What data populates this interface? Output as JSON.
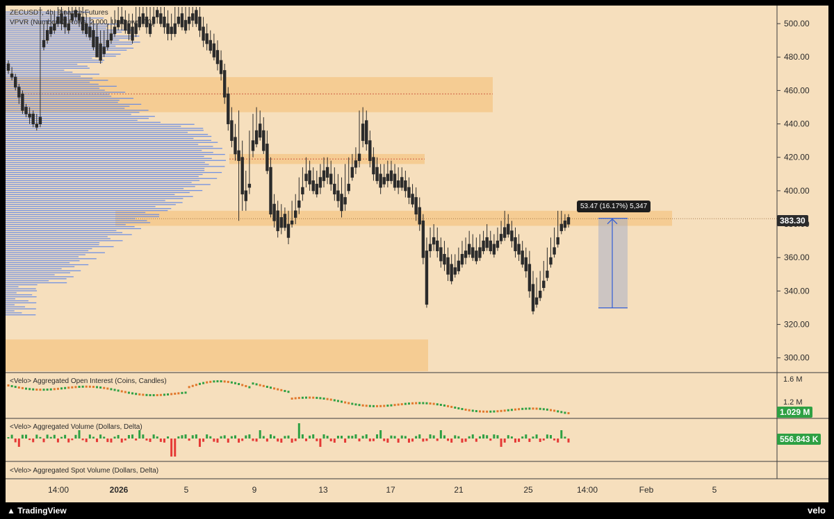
{
  "header": {
    "symbol_line": "ZECUSDT, 4h, Binance-Futures",
    "vpvr_line": "VPVR (Number Of Rows, 2,000, Up/Down, 70)"
  },
  "price_axis": {
    "ticks": [
      "500.00",
      "480.00",
      "460.00",
      "440.00",
      "420.00",
      "400.00",
      "380.00",
      "360.00",
      "340.00",
      "320.00",
      "300.00"
    ],
    "current_price": "383.30"
  },
  "time_axis": {
    "labels": [
      "14:00",
      "2026",
      "5",
      "9",
      "13",
      "17",
      "21",
      "25",
      "14:00",
      "Feb",
      "5"
    ]
  },
  "measure": {
    "label": "53.47 (16.17%) 5,347"
  },
  "panes": {
    "oi": {
      "title": "<Velo> Aggregated Open Interest (Coins, Candles)",
      "ticks": [
        "1.6 M",
        "1.2 M"
      ],
      "value": "1.029 M"
    },
    "volume": {
      "title": "<Velo> Aggregated Volume (Dollars, Delta)",
      "value": "556.843 K"
    },
    "spot": {
      "title": "<Velo> Aggregated Spot Volume (Dollars, Delta)"
    }
  },
  "footer": {
    "left": "TradingView",
    "right": "velo"
  },
  "colors": {
    "bg": "#f6dfbd",
    "zone": "#f5c98c",
    "up": "#26a69a",
    "candle": "#2b2b2b",
    "vp": "#5b84e8",
    "green": "#2ea043",
    "red": "#e53935"
  },
  "chart_data": {
    "type": "candlestick",
    "ylim": [
      292,
      510
    ],
    "candles": [
      [
        476,
        478,
        472,
        470
      ],
      [
        470,
        474,
        468,
        466
      ],
      [
        468,
        470,
        462,
        460
      ],
      [
        462,
        464,
        456,
        452
      ],
      [
        458,
        460,
        448,
        446
      ],
      [
        450,
        452,
        446,
        444
      ],
      [
        446,
        450,
        444,
        440
      ],
      [
        446,
        448,
        440,
        438
      ],
      [
        440,
        446,
        438,
        436
      ],
      [
        444,
        512,
        440,
        438
      ],
      [
        490,
        500,
        486,
        484
      ],
      [
        496,
        502,
        490,
        488
      ],
      [
        498,
        506,
        494,
        492
      ],
      [
        500,
        508,
        496,
        494
      ],
      [
        504,
        512,
        500,
        498
      ],
      [
        506,
        510,
        500,
        496
      ],
      [
        504,
        508,
        498,
        494
      ],
      [
        500,
        510,
        496,
        494
      ],
      [
        506,
        512,
        502,
        500
      ],
      [
        508,
        512,
        504,
        502
      ],
      [
        506,
        512,
        502,
        498
      ],
      [
        504,
        510,
        496,
        494
      ],
      [
        500,
        506,
        494,
        492
      ],
      [
        498,
        504,
        492,
        490
      ],
      [
        496,
        502,
        486,
        484
      ],
      [
        492,
        500,
        480,
        480
      ],
      [
        488,
        496,
        478,
        476
      ],
      [
        486,
        496,
        482,
        480
      ],
      [
        490,
        500,
        486,
        484
      ],
      [
        494,
        504,
        490,
        488
      ],
      [
        498,
        508,
        494,
        492
      ],
      [
        502,
        510,
        498,
        496
      ],
      [
        504,
        510,
        500,
        496
      ],
      [
        502,
        508,
        496,
        494
      ],
      [
        500,
        506,
        494,
        490
      ],
      [
        498,
        506,
        490,
        488
      ],
      [
        500,
        510,
        494,
        492
      ],
      [
        504,
        512,
        498,
        496
      ],
      [
        506,
        512,
        500,
        498
      ],
      [
        504,
        510,
        498,
        494
      ],
      [
        500,
        510,
        494,
        492
      ],
      [
        504,
        512,
        500,
        498
      ],
      [
        508,
        512,
        504,
        500
      ],
      [
        506,
        512,
        500,
        498
      ],
      [
        504,
        510,
        498,
        494
      ],
      [
        500,
        508,
        494,
        490
      ],
      [
        498,
        506,
        494,
        490
      ],
      [
        500,
        510,
        494,
        492
      ],
      [
        504,
        512,
        500,
        498
      ],
      [
        506,
        512,
        498,
        496
      ],
      [
        502,
        512,
        496,
        494
      ],
      [
        504,
        512,
        500,
        496
      ],
      [
        506,
        512,
        502,
        498
      ],
      [
        508,
        512,
        500,
        498
      ],
      [
        504,
        510,
        496,
        492
      ],
      [
        498,
        504,
        490,
        486
      ],
      [
        494,
        500,
        488,
        484
      ],
      [
        490,
        496,
        484,
        482
      ],
      [
        488,
        494,
        480,
        478
      ],
      [
        484,
        490,
        476,
        472
      ],
      [
        478,
        484,
        470,
        466
      ],
      [
        472,
        476,
        456,
        452
      ],
      [
        458,
        462,
        440,
        436
      ],
      [
        442,
        450,
        430,
        426
      ],
      [
        432,
        440,
        422,
        418
      ],
      [
        424,
        448,
        418,
        382
      ],
      [
        420,
        430,
        398,
        388
      ],
      [
        400,
        412,
        394,
        388
      ],
      [
        404,
        436,
        402,
        398
      ],
      [
        430,
        446,
        424,
        420
      ],
      [
        436,
        450,
        428,
        426
      ],
      [
        440,
        448,
        432,
        430
      ],
      [
        436,
        444,
        424,
        422
      ],
      [
        428,
        436,
        412,
        410
      ],
      [
        414,
        420,
        386,
        384
      ],
      [
        392,
        398,
        382,
        378
      ],
      [
        388,
        394,
        376,
        372
      ],
      [
        384,
        392,
        378,
        374
      ],
      [
        386,
        390,
        378,
        376
      ],
      [
        380,
        388,
        372,
        368
      ],
      [
        382,
        394,
        380,
        378
      ],
      [
        388,
        398,
        384,
        380
      ],
      [
        394,
        408,
        390,
        386
      ],
      [
        402,
        414,
        398,
        394
      ],
      [
        410,
        420,
        406,
        402
      ],
      [
        412,
        418,
        404,
        400
      ],
      [
        406,
        414,
        400,
        398
      ],
      [
        404,
        412,
        398,
        396
      ],
      [
        408,
        416,
        402,
        398
      ],
      [
        412,
        420,
        406,
        402
      ],
      [
        414,
        420,
        408,
        404
      ],
      [
        410,
        418,
        404,
        400
      ],
      [
        404,
        414,
        398,
        394
      ],
      [
        400,
        410,
        394,
        390
      ],
      [
        398,
        408,
        388,
        384
      ],
      [
        396,
        416,
        392,
        388
      ],
      [
        404,
        420,
        400,
        398
      ],
      [
        414,
        422,
        408,
        406
      ],
      [
        418,
        426,
        414,
        410
      ],
      [
        422,
        448,
        418,
        414
      ],
      [
        440,
        450,
        430,
        426
      ],
      [
        442,
        448,
        428,
        424
      ],
      [
        430,
        436,
        418,
        414
      ],
      [
        420,
        426,
        410,
        406
      ],
      [
        414,
        420,
        406,
        404
      ],
      [
        410,
        416,
        402,
        398
      ],
      [
        408,
        416,
        404,
        402
      ],
      [
        410,
        418,
        406,
        402
      ],
      [
        412,
        418,
        406,
        404
      ],
      [
        410,
        416,
        402,
        400
      ],
      [
        406,
        414,
        402,
        398
      ],
      [
        408,
        414,
        402,
        400
      ],
      [
        406,
        412,
        400,
        396
      ],
      [
        402,
        408,
        396,
        392
      ],
      [
        398,
        404,
        392,
        390
      ],
      [
        396,
        402,
        386,
        382
      ],
      [
        390,
        396,
        380,
        376
      ],
      [
        382,
        386,
        360,
        356
      ],
      [
        364,
        372,
        332,
        330
      ],
      [
        368,
        378,
        364,
        360
      ],
      [
        372,
        380,
        368,
        364
      ],
      [
        370,
        378,
        364,
        360
      ],
      [
        366,
        372,
        358,
        354
      ],
      [
        362,
        370,
        356,
        352
      ],
      [
        360,
        366,
        350,
        346
      ],
      [
        356,
        362,
        346,
        344
      ],
      [
        354,
        362,
        350,
        348
      ],
      [
        358,
        366,
        352,
        350
      ],
      [
        362,
        370,
        356,
        354
      ],
      [
        364,
        372,
        360,
        356
      ],
      [
        368,
        376,
        362,
        360
      ],
      [
        366,
        374,
        360,
        358
      ],
      [
        364,
        372,
        358,
        356
      ],
      [
        366,
        374,
        360,
        358
      ],
      [
        370,
        376,
        364,
        362
      ],
      [
        372,
        380,
        366,
        364
      ],
      [
        370,
        376,
        364,
        362
      ],
      [
        368,
        374,
        362,
        360
      ],
      [
        370,
        378,
        366,
        364
      ],
      [
        374,
        382,
        370,
        368
      ],
      [
        378,
        388,
        372,
        370
      ],
      [
        380,
        386,
        374,
        372
      ],
      [
        376,
        382,
        370,
        366
      ],
      [
        372,
        378,
        364,
        360
      ],
      [
        368,
        374,
        362,
        358
      ],
      [
        364,
        370,
        356,
        354
      ],
      [
        360,
        366,
        352,
        348
      ],
      [
        356,
        364,
        340,
        336
      ],
      [
        344,
        352,
        328,
        326
      ],
      [
        336,
        348,
        332,
        330
      ],
      [
        340,
        352,
        336,
        334
      ],
      [
        346,
        358,
        342,
        340
      ],
      [
        352,
        366,
        348,
        346
      ],
      [
        360,
        372,
        356,
        354
      ],
      [
        366,
        378,
        362,
        360
      ],
      [
        372,
        388,
        368,
        366
      ],
      [
        380,
        388,
        376,
        374
      ],
      [
        382,
        386,
        378,
        376
      ],
      [
        384,
        386,
        380,
        378
      ]
    ]
  }
}
